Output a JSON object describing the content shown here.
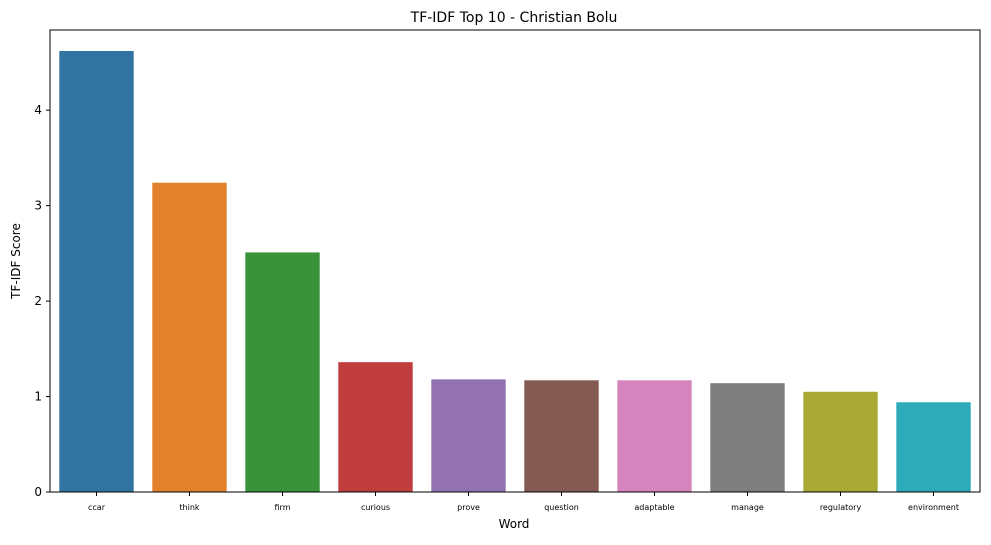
{
  "chart_data": {
    "type": "bar",
    "title": "TF-IDF Top 10 - Christian Bolu",
    "xlabel": "Word",
    "ylabel": "TF-IDF Score",
    "categories": [
      "ccar",
      "think",
      "firm",
      "curious",
      "prove",
      "question",
      "adaptable",
      "manage",
      "regulatory",
      "environment"
    ],
    "values": [
      4.62,
      3.24,
      2.51,
      1.36,
      1.18,
      1.17,
      1.17,
      1.14,
      1.05,
      0.94
    ],
    "colors": [
      "#3274a1",
      "#e1812c",
      "#3a923a",
      "#c03d3e",
      "#9372b2",
      "#845b53",
      "#d684bd",
      "#7f7f7f",
      "#a9aa35",
      "#2eabb8"
    ],
    "ylim": [
      0,
      4.84
    ],
    "yticks": [
      0,
      1,
      2,
      3,
      4
    ],
    "grid": false,
    "legend": "none"
  }
}
